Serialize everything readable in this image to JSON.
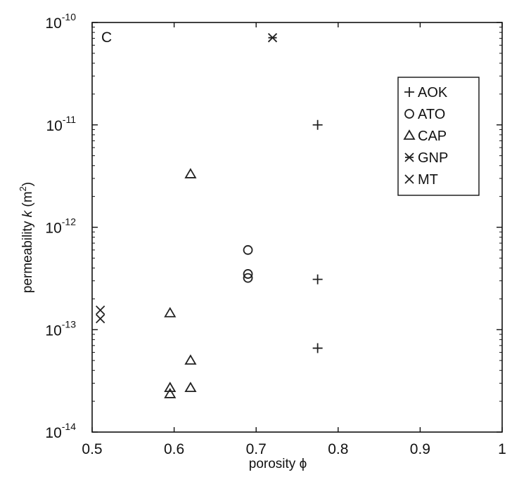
{
  "chart_data": {
    "type": "scatter",
    "panel_label": "C",
    "xlabel": "porosity ϕ",
    "ylabel_parts": [
      "permeability ",
      "k",
      " (m",
      "2",
      ")"
    ],
    "xlim": [
      0.5,
      1.0
    ],
    "ylim": [
      1e-14,
      1e-10
    ],
    "yscale": "log",
    "x_ticks": [
      "0.5",
      "0.6",
      "0.7",
      "0.8",
      "0.9",
      "1"
    ],
    "y_ticks": [
      {
        "base": "10",
        "exp": "-14",
        "value": 1e-14
      },
      {
        "base": "10",
        "exp": "-13",
        "value": 1e-13
      },
      {
        "base": "10",
        "exp": "-12",
        "value": 1e-12
      },
      {
        "base": "10",
        "exp": "-11",
        "value": 1e-11
      },
      {
        "base": "10",
        "exp": "-10",
        "value": 1e-10
      }
    ],
    "legend_position": "top-right",
    "series": [
      {
        "name": "AOK",
        "marker": "plus",
        "x": [
          0.775,
          0.775,
          0.775
        ],
        "y": [
          1e-11,
          3.1e-13,
          6.6e-14
        ]
      },
      {
        "name": "ATO",
        "marker": "circle",
        "x": [
          0.69,
          0.69,
          0.69
        ],
        "y": [
          6e-13,
          3.5e-13,
          3.2e-13
        ]
      },
      {
        "name": "CAP",
        "marker": "triangle",
        "x": [
          0.62,
          0.595,
          0.62,
          0.595,
          0.62,
          0.595
        ],
        "y": [
          3.3e-12,
          1.45e-13,
          5e-14,
          2.7e-14,
          2.7e-14,
          2.35e-14
        ]
      },
      {
        "name": "GNP",
        "marker": "asterisk",
        "x": [
          0.72
        ],
        "y": [
          7.1e-11
        ]
      },
      {
        "name": "MT",
        "marker": "x",
        "x": [
          0.51,
          0.51
        ],
        "y": [
          1.55e-13,
          1.28e-13
        ]
      }
    ]
  }
}
